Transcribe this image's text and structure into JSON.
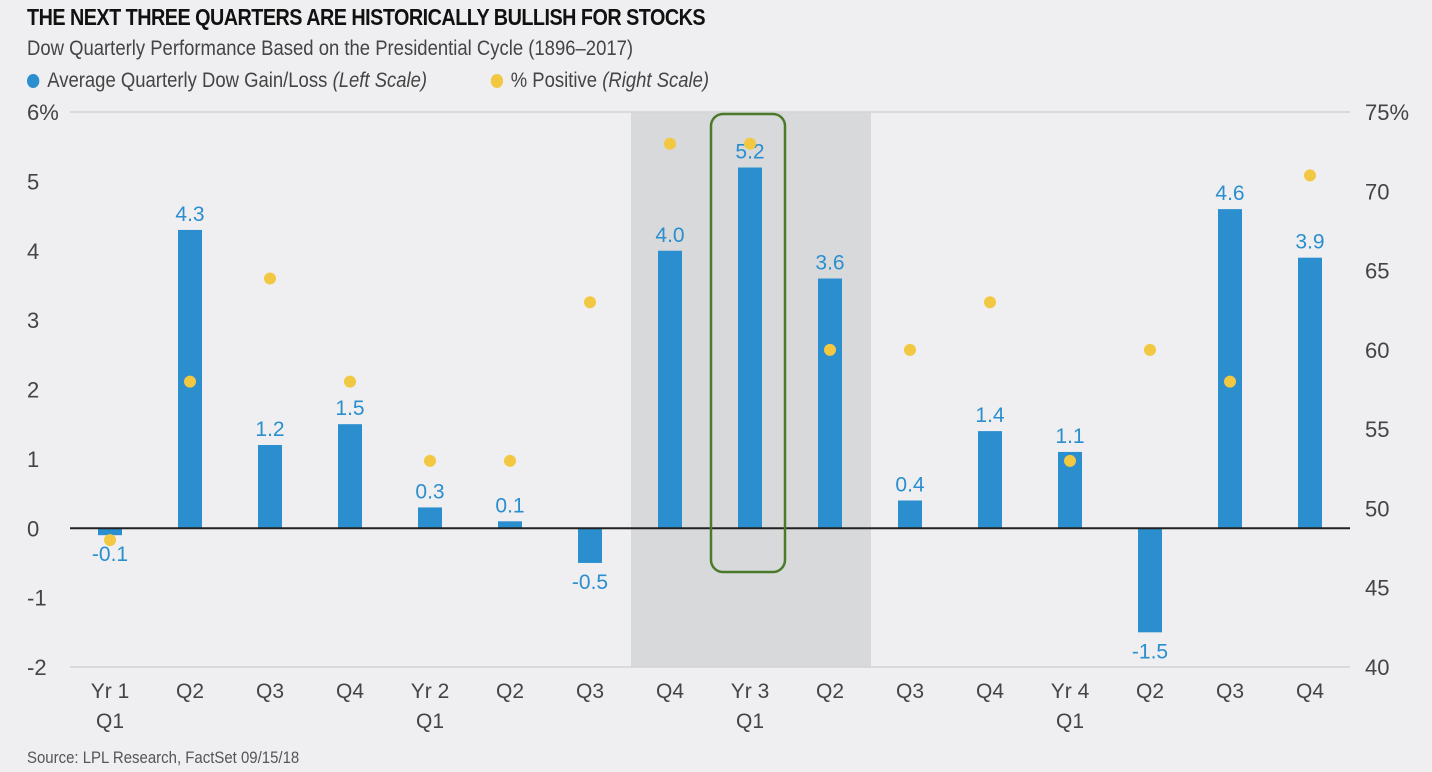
{
  "chart_data": {
    "type": "bar",
    "title": "THE NEXT THREE QUARTERS ARE HISTORICALLY BULLISH FOR STOCKS",
    "subtitle": "Dow Quarterly Performance Based on the Presidential Cycle (1896–2017)",
    "categories": [
      [
        "Yr 1",
        "Q1"
      ],
      [
        "Q2"
      ],
      [
        "Q3"
      ],
      [
        "Q4"
      ],
      [
        "Yr 2",
        "Q1"
      ],
      [
        "Q2"
      ],
      [
        "Q3"
      ],
      [
        "Q4"
      ],
      [
        "Yr 3",
        "Q1"
      ],
      [
        "Q2"
      ],
      [
        "Q3"
      ],
      [
        "Q4"
      ],
      [
        "Yr 4",
        "Q1"
      ],
      [
        "Q2"
      ],
      [
        "Q3"
      ],
      [
        "Q4"
      ]
    ],
    "series": [
      {
        "name": "Average Quarterly Dow Gain/Loss",
        "scale_note": "(Left Scale)",
        "axis": "left",
        "kind": "bar",
        "color": "#2a8ecf",
        "values": [
          -0.1,
          4.3,
          1.2,
          1.5,
          0.3,
          0.1,
          -0.5,
          4.0,
          5.2,
          3.6,
          0.4,
          1.4,
          1.1,
          -1.5,
          4.6,
          3.9
        ],
        "labels": [
          "-0.1",
          "4.3",
          "1.2",
          "1.5",
          "0.3",
          "0.1",
          "-0.5",
          "4.0",
          "5.2",
          "3.6",
          "0.4",
          "1.4",
          "1.1",
          "-1.5",
          "4.6",
          "3.9"
        ]
      },
      {
        "name": "% Positive",
        "scale_note": "(Right Scale)",
        "axis": "right",
        "kind": "scatter",
        "color": "#f2c842",
        "values_are_estimates": true,
        "values": [
          48,
          58,
          64.5,
          58,
          53,
          53,
          63,
          73,
          73,
          60,
          60,
          63,
          53,
          60,
          58,
          71
        ]
      }
    ],
    "left_axis": {
      "range": [
        -2,
        6
      ],
      "ticks": [
        6,
        5,
        4,
        3,
        2,
        1,
        0,
        -1,
        -2
      ],
      "tick_labels": [
        "6%",
        "5",
        "4",
        "3",
        "2",
        "1",
        "0",
        "-1",
        "-2"
      ]
    },
    "right_axis": {
      "range": [
        40,
        75
      ],
      "ticks": [
        75,
        70,
        65,
        60,
        55,
        50,
        45,
        40
      ],
      "tick_labels": [
        "75%",
        "70",
        "65",
        "60",
        "55",
        "50",
        "45",
        "40"
      ]
    },
    "highlight_band": {
      "from_category_index": 7,
      "to_category_index": 9,
      "color": "#d8d9db"
    },
    "highlight_box": {
      "category_index": 8,
      "color": "#4a7a2a"
    },
    "grid": false,
    "legend_position": "top-left",
    "xlabel": "",
    "ylabel": ""
  },
  "source": "Source: LPL Research, FactSet   09/15/18"
}
